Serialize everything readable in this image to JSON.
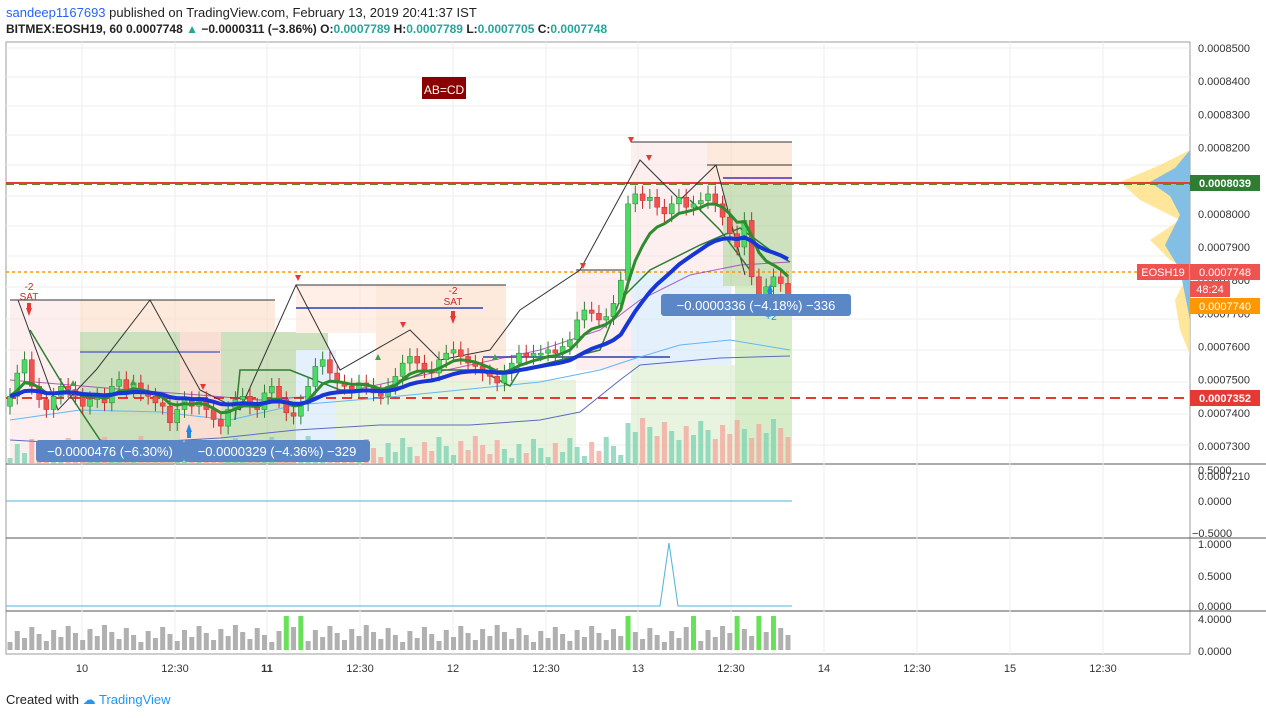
{
  "header": {
    "user": "sandeep1167693",
    "published": "published on TradingView.com, February 13, 2019 20:41:37 IST",
    "symbol": "BITMEX:EOSH19, 60",
    "last": "0.0007748",
    "change": "−0.0000311 (−3.86%)",
    "o_label": "O:",
    "o_val": "0.0007789",
    "h_label": "H:",
    "h_val": "0.0007789",
    "l_label": "L:",
    "l_val": "0.0007705",
    "c_label": "C:",
    "c_val": "0.0007748"
  },
  "footer": {
    "created": "Created with",
    "brand": "TradingView"
  },
  "colors": {
    "up": "#4cd964",
    "down": "#ef5350",
    "ema_blue": "#1736d6",
    "ema_green": "#2e8b2e",
    "red_line": "#e53935"
  },
  "annotations": {
    "abcd": "AB=CD",
    "measure1": "−0.0000476 (−6.30%)",
    "measure2": "−0.0000329 (−4.36%) −329",
    "measure3": "−0.0000336 (−4.18%) −336",
    "sat1": "SAT",
    "sat1_num": "-2",
    "sat2": "SAT",
    "sat2_num": "-2",
    "plus2": "+2"
  },
  "price_tags": {
    "t8039": "0.0008039",
    "symbol_tag": "EOSH19",
    "t7748": "0.0007748",
    "countdown": "48:24",
    "t7740": "0.0007740",
    "t7352": "0.0007352"
  },
  "chart_data": {
    "type": "candlestick",
    "symbol": "BITMEX:EOSH19",
    "interval": "60",
    "y_ticks": [
      "0.0008500",
      "0.0008400",
      "0.0008300",
      "0.0008200",
      "0.0008100",
      "0.0008000",
      "0.0007900",
      "0.0007800",
      "0.0007700",
      "0.0007600",
      "0.0007500",
      "0.0007400",
      "0.0007300",
      "0.0007210"
    ],
    "ylim": [
      0.00072,
      0.00085
    ],
    "x_ticks": [
      "10",
      "12:30",
      "11",
      "12:30",
      "12",
      "12:30",
      "13",
      "12:30",
      "14",
      "12:30",
      "15",
      "12:30"
    ],
    "horizontal_levels": [
      0.0008039,
      0.0007748,
      0.0007352
    ],
    "osc1_ticks": [
      "0.5000",
      "0.0000",
      "−0.5000"
    ],
    "osc2_ticks": [
      "1.0000",
      "0.5000",
      "0.0000"
    ],
    "osc3_ticks": [
      "4.0000",
      "0.0000"
    ],
    "closes": [
      0.000745,
      0.000752,
      0.000756,
      0.000748,
      0.000744,
      0.000741,
      0.000745,
      0.000748,
      0.000747,
      0.000745,
      0.000742,
      0.000744,
      0.000745,
      0.000743,
      0.000748,
      0.00075,
      0.000747,
      0.000749,
      0.000746,
      0.000745,
      0.000743,
      0.000742,
      0.000737,
      0.000741,
      0.000744,
      0.000742,
      0.000744,
      0.000741,
      0.000738,
      0.000736,
      0.000741,
      0.000744,
      0.000745,
      0.000742,
      0.000741,
      0.000746,
      0.000748,
      0.000744,
      0.00074,
      0.000739,
      0.000743,
      0.000748,
      0.000754,
      0.000756,
      0.000752,
      0.000749,
      0.000748,
      0.000747,
      0.000749,
      0.000748,
      0.000746,
      0.000745,
      0.000748,
      0.000751,
      0.000755,
      0.000757,
      0.000755,
      0.000753,
      0.000752,
      0.000756,
      0.000758,
      0.000759,
      0.000757,
      0.000755,
      0.000754,
      0.000752,
      0.000751,
      0.000749,
      0.000752,
      0.000755,
      0.000758,
      0.000757,
      0.000758,
      0.000758,
      0.000759,
      0.000758,
      0.00076,
      0.000762,
      0.000768,
      0.000771,
      0.00077,
      0.000768,
      0.000769,
      0.000773,
      0.00078,
      0.000803,
      0.000806,
      0.000804,
      0.000805,
      0.000802,
      0.0008,
      0.000803,
      0.000805,
      0.000802,
      0.000803,
      0.000804,
      0.000806,
      0.000803,
      0.000799,
      0.000794,
      0.00079,
      0.000798,
      0.000781,
      0.000773,
      0.000778,
      0.000781,
      0.000779,
      0.000775
    ]
  }
}
